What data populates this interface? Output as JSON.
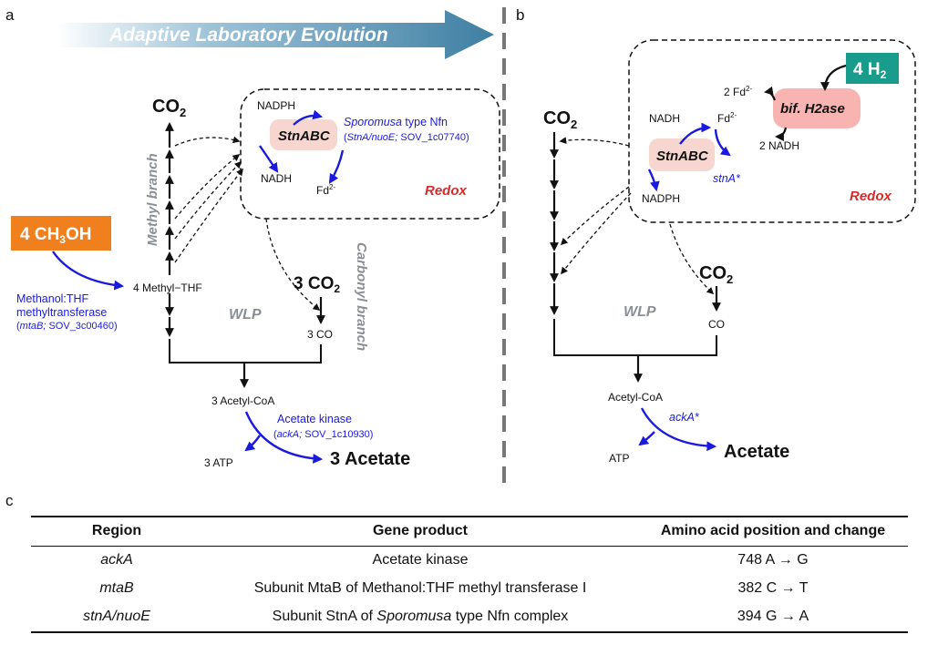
{
  "panel_labels": {
    "a": "a",
    "b": "b",
    "c": "c"
  },
  "colors": {
    "ale_arrow": "#4f8fb0",
    "methanol_box": "#f07f1e",
    "h2_box": "#1a9c8c",
    "enzyme_bg": "#f7d6d0",
    "blue_text": "#1a1adf",
    "grey_text": "#8a8f96",
    "red_text": "#d62b2b"
  },
  "panel_a": {
    "ale_title": "Adaptive Laboratory Evolution",
    "co2_top": "CO",
    "co2_top_sub": "2",
    "methyl_branch": "Methyl branch",
    "carbonyl_branch": "Carbonyl branch",
    "nadph": "NADPH",
    "stnabc": "StnABC",
    "nadh": "NADH",
    "fd": "Fd",
    "fd_sup": "2-",
    "nfn_label_italic": "Sporomusa",
    "nfn_label_rest": " type Nfn",
    "nfn_genes_italic": "StnA/nuoE;",
    "nfn_genes_rest": " SOV_1c07740)",
    "nfn_genes_open": "(",
    "redox": "Redox",
    "methanol_prefix": "4 CH",
    "methanol_sub": "3",
    "methanol_suffix": "OH",
    "methyl_thf": "4 Methyl−THF",
    "mtab_line1": "Methanol:THF",
    "mtab_line2": "methyltransferase",
    "mtab_gene_open": "(",
    "mtab_gene_italic": "mtaB;",
    "mtab_gene_rest": " SOV_3c00460)",
    "wlp": "WLP",
    "co2_3": "3 CO",
    "co2_3_sub": "2",
    "co_3": "3 CO",
    "acetyl_coa": "3 Acetyl-CoA",
    "acetate_kinase": "Acetate kinase",
    "acka_gene_open": "(",
    "acka_gene_italic": "ackA;",
    "acka_gene_rest": " SOV_1c10930)",
    "atp": "3 ATP",
    "acetate": "3 Acetate"
  },
  "panel_b": {
    "co2_left": "CO",
    "co2_left_sub": "2",
    "nadh": "NADH",
    "fd": "Fd",
    "fd_sup": "2-",
    "stnabc": "StnABC",
    "nadph": "NADPH",
    "stna_star": "stnA*",
    "fd2": "2 Fd",
    "fd2_sup": "2-",
    "nadh2": "2 NADH",
    "h2ase": "bif. H2ase",
    "h2_prefix": "4 H",
    "h2_sub": "2",
    "redox": "Redox",
    "co2_right": "CO",
    "co2_right_sub": "2",
    "co": "CO",
    "wlp": "WLP",
    "acetyl_coa": "Acetyl-CoA",
    "acka_star": "ackA*",
    "atp": "ATP",
    "acetate": "Acetate"
  },
  "table": {
    "headers": [
      "Region",
      "Gene product",
      "Amino acid position and change"
    ],
    "rows": [
      {
        "region": "ackA",
        "product": "Acetate kinase",
        "product_italic": "",
        "product_rest": "",
        "change": "748 A → G"
      },
      {
        "region": "mtaB",
        "product": "Subunit MtaB of Methanol:THF methyl transferase I",
        "product_italic": "",
        "product_rest": "",
        "change": "382 C → T"
      },
      {
        "region": "stnA/nuoE",
        "product": "Subunit StnA of ",
        "product_italic": "Sporomusa",
        "product_rest": " type Nfn complex",
        "change": "394 G → A"
      }
    ]
  }
}
